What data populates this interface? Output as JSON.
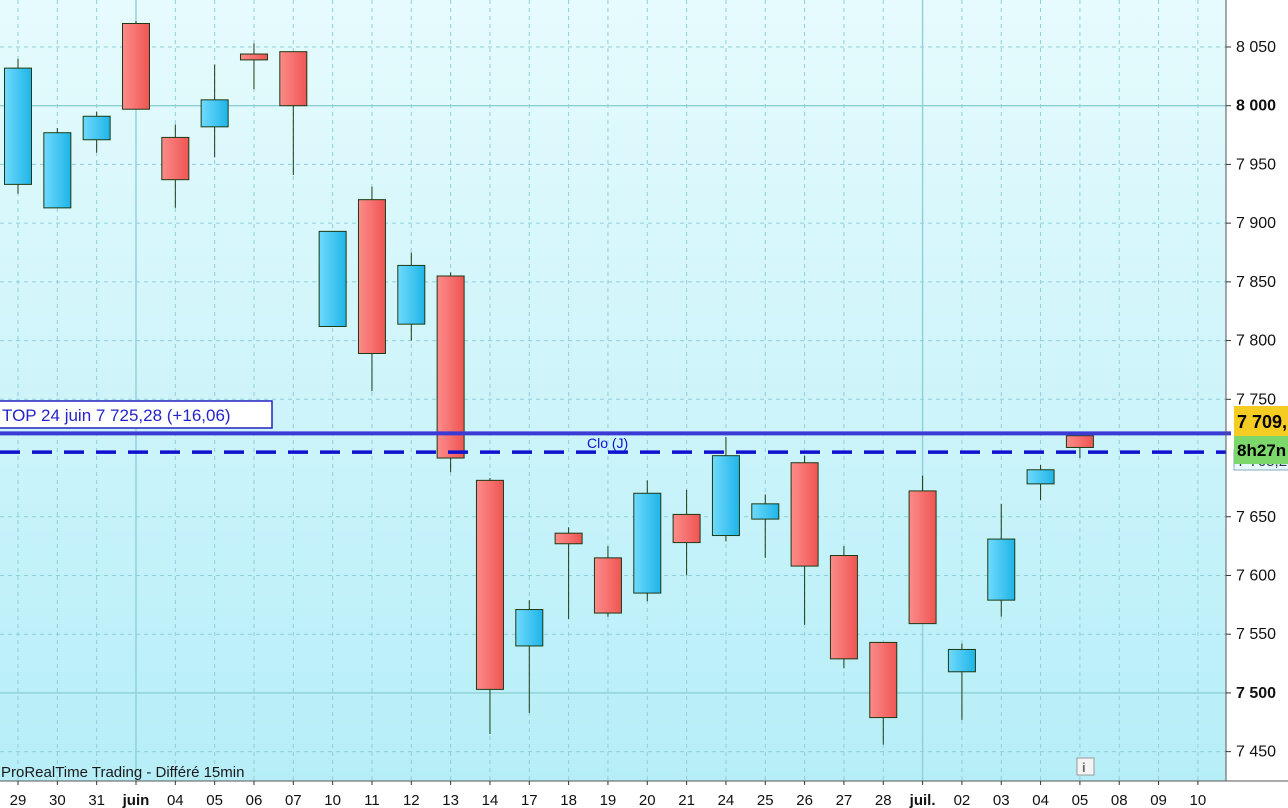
{
  "chart_data": {
    "type": "candlestick",
    "ylim": [
      7425,
      8090
    ],
    "y_ticks": [
      {
        "value": 8050,
        "label": "8 050",
        "bold": false
      },
      {
        "value": 8000,
        "label": "8 000",
        "bold": true
      },
      {
        "value": 7950,
        "label": "7 950",
        "bold": false
      },
      {
        "value": 7900,
        "label": "7 900",
        "bold": false
      },
      {
        "value": 7850,
        "label": "7 850",
        "bold": false
      },
      {
        "value": 7800,
        "label": "7 800",
        "bold": false
      },
      {
        "value": 7750,
        "label": "7 750",
        "bold": false
      },
      {
        "value": 7650,
        "label": "7 650",
        "bold": false
      },
      {
        "value": 7600,
        "label": "7 600",
        "bold": false
      },
      {
        "value": 7550,
        "label": "7 550",
        "bold": false
      },
      {
        "value": 7500,
        "label": "7 500",
        "bold": true
      },
      {
        "value": 7450,
        "label": "7 450",
        "bold": false
      }
    ],
    "x_labels": [
      {
        "label": "29",
        "bold": false
      },
      {
        "label": "30",
        "bold": false
      },
      {
        "label": "31",
        "bold": false
      },
      {
        "label": "juin",
        "bold": true
      },
      {
        "label": "04",
        "bold": false
      },
      {
        "label": "05",
        "bold": false
      },
      {
        "label": "06",
        "bold": false
      },
      {
        "label": "07",
        "bold": false
      },
      {
        "label": "10",
        "bold": false
      },
      {
        "label": "11",
        "bold": false
      },
      {
        "label": "12",
        "bold": false
      },
      {
        "label": "13",
        "bold": false
      },
      {
        "label": "14",
        "bold": false
      },
      {
        "label": "17",
        "bold": false
      },
      {
        "label": "18",
        "bold": false
      },
      {
        "label": "19",
        "bold": false
      },
      {
        "label": "20",
        "bold": false
      },
      {
        "label": "21",
        "bold": false
      },
      {
        "label": "24",
        "bold": false
      },
      {
        "label": "25",
        "bold": false
      },
      {
        "label": "26",
        "bold": false
      },
      {
        "label": "27",
        "bold": false
      },
      {
        "label": "28",
        "bold": false
      },
      {
        "label": "juil.",
        "bold": true
      },
      {
        "label": "02",
        "bold": false
      },
      {
        "label": "03",
        "bold": false
      },
      {
        "label": "04",
        "bold": false
      },
      {
        "label": "05",
        "bold": false
      },
      {
        "label": "08",
        "bold": false
      },
      {
        "label": "09",
        "bold": false
      },
      {
        "label": "10",
        "bold": false
      }
    ],
    "candles": [
      {
        "date": "29",
        "open": 7933,
        "high": 8040,
        "low": 7925,
        "close": 8032
      },
      {
        "date": "30",
        "open": 7913,
        "high": 7981,
        "low": 7913,
        "close": 7977
      },
      {
        "date": "31",
        "open": 7971,
        "high": 7995,
        "low": 7960,
        "close": 7991
      },
      {
        "date": "juin",
        "open": 8070,
        "high": 8072,
        "low": 7997,
        "close": 7997
      },
      {
        "date": "04",
        "open": 7973,
        "high": 7984,
        "low": 7913,
        "close": 7937
      },
      {
        "date": "05",
        "open": 7982,
        "high": 8035,
        "low": 7956,
        "close": 8005
      },
      {
        "date": "06",
        "open": 8044,
        "high": 8053,
        "low": 8014,
        "close": 8039
      },
      {
        "date": "07",
        "open": 8046,
        "high": 8046,
        "low": 7941,
        "close": 8000
      },
      {
        "date": "10",
        "open": 7812,
        "high": 7893,
        "low": 7812,
        "close": 7893
      },
      {
        "date": "11",
        "open": 7920,
        "high": 7931,
        "low": 7757,
        "close": 7789
      },
      {
        "date": "12",
        "open": 7814,
        "high": 7875,
        "low": 7800,
        "close": 7864
      },
      {
        "date": "13",
        "open": 7855,
        "high": 7858,
        "low": 7688,
        "close": 7700
      },
      {
        "date": "14",
        "open": 7681,
        "high": 7683,
        "low": 7465,
        "close": 7503
      },
      {
        "date": "17",
        "open": 7540,
        "high": 7579,
        "low": 7483,
        "close": 7571
      },
      {
        "date": "18",
        "open": 7636,
        "high": 7641,
        "low": 7563,
        "close": 7627
      },
      {
        "date": "19",
        "open": 7615,
        "high": 7625,
        "low": 7565,
        "close": 7568
      },
      {
        "date": "20",
        "open": 7585,
        "high": 7681,
        "low": 7578,
        "close": 7670
      },
      {
        "date": "21",
        "open": 7652,
        "high": 7673,
        "low": 7600,
        "close": 7628
      },
      {
        "date": "24",
        "open": 7634,
        "high": 7718,
        "low": 7629,
        "close": 7702
      },
      {
        "date": "25",
        "open": 7648,
        "high": 7669,
        "low": 7615,
        "close": 7661
      },
      {
        "date": "26",
        "open": 7696,
        "high": 7702,
        "low": 7558,
        "close": 7608
      },
      {
        "date": "27",
        "open": 7617,
        "high": 7625,
        "low": 7521,
        "close": 7529
      },
      {
        "date": "28",
        "open": 7543,
        "high": 7543,
        "low": 7456,
        "close": 7479
      },
      {
        "date": "juil.",
        "open": 7672,
        "high": 7685,
        "low": 7559,
        "close": 7559
      },
      {
        "date": "02",
        "open": 7518,
        "high": 7542,
        "low": 7477,
        "close": 7537
      },
      {
        "date": "03",
        "open": 7579,
        "high": 7661,
        "low": 7565,
        "close": 7631
      },
      {
        "date": "04",
        "open": 7678,
        "high": 7694,
        "low": 7664,
        "close": 7690
      },
      {
        "date": "05",
        "open": 7719,
        "high": 7719,
        "low": 7700,
        "close": 7709
      }
    ],
    "top_line": {
      "value": 7721,
      "label": "TOP 24 juin 7 725,28 (+16,06)"
    },
    "close_line": {
      "value": 7705,
      "label": "Clo (J)"
    },
    "price_badge": "7 709,",
    "close_badge": "7 705,2",
    "time_badge": "8h27n",
    "footer": "ProRealTime Trading - Différé 15min",
    "info_icon": "info-icon",
    "colors": {
      "up": "#33c5f2",
      "down": "#f86a6a",
      "top_line": "#3b3bd4",
      "close_line": "#1010d0",
      "price_badge": "#f5cc22",
      "time_badge": "#7cd86a"
    }
  }
}
